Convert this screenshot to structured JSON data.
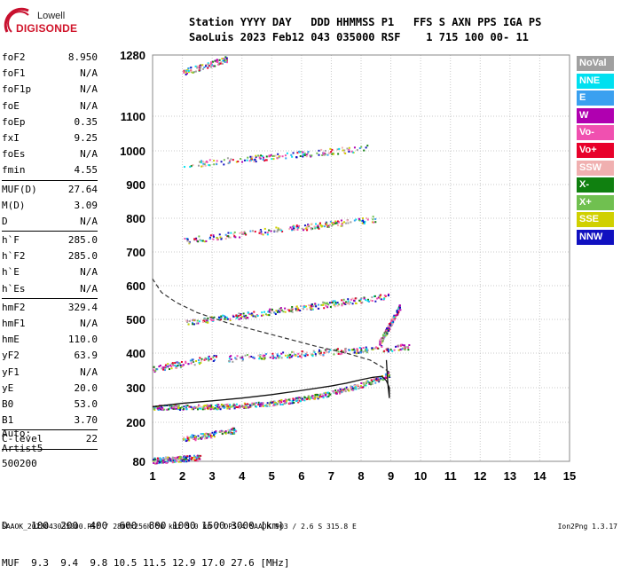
{
  "logo": {
    "line1": "Lowell",
    "line2": "DIGISONDE"
  },
  "header": {
    "line1": "Station YYYY DAY   DDD HHMMSS P1   FFS S AXN PPS IGA PS",
    "line2": "SaoLuis 2023 Feb12 043 035000 RSF    1 715 100 00- 11"
  },
  "params": [
    {
      "name": "foF2",
      "value": "8.950"
    },
    {
      "name": "foF1",
      "value": "N/A"
    },
    {
      "name": "foF1p",
      "value": "N/A"
    },
    {
      "name": "foE",
      "value": "N/A"
    },
    {
      "name": "foEp",
      "value": "0.35"
    },
    {
      "name": "fxI",
      "value": "9.25"
    },
    {
      "name": "foEs",
      "value": "N/A"
    },
    {
      "name": "fmin",
      "value": "4.55"
    },
    {
      "name": "MUF(D)",
      "value": "27.64",
      "sep": true
    },
    {
      "name": "M(D)",
      "value": "3.09"
    },
    {
      "name": "D",
      "value": "N/A"
    },
    {
      "name": "h`F",
      "value": "285.0",
      "sep": true
    },
    {
      "name": "h`F2",
      "value": "285.0"
    },
    {
      "name": "h`E",
      "value": "N/A"
    },
    {
      "name": "h`Es",
      "value": "N/A"
    },
    {
      "name": "hmF2",
      "value": "329.4",
      "sep": true
    },
    {
      "name": "hmF1",
      "value": "N/A"
    },
    {
      "name": "hmE",
      "value": "110.0"
    },
    {
      "name": "yF2",
      "value": "63.9"
    },
    {
      "name": "yF1",
      "value": "N/A"
    },
    {
      "name": "yE",
      "value": "20.0"
    },
    {
      "name": "B0",
      "value": "53.0"
    },
    {
      "name": "B1",
      "value": "3.70"
    },
    {
      "name": "C-level",
      "value": "22",
      "sep": true
    }
  ],
  "artist": {
    "label": "Auto:",
    "name": "Artist5",
    "version": "500200"
  },
  "legend": [
    {
      "label": "NoVal",
      "color": "#a0a0a0"
    },
    {
      "label": "NNE",
      "color": "#00e0f0"
    },
    {
      "label": "E",
      "color": "#3aa0f0"
    },
    {
      "label": "W",
      "color": "#b000b0"
    },
    {
      "label": "Vo-",
      "color": "#f050b0"
    },
    {
      "label": "Vo+",
      "color": "#e8002a"
    },
    {
      "label": "SSW",
      "color": "#f0b0b0"
    },
    {
      "label": "X-",
      "color": "#108010"
    },
    {
      "label": "X+",
      "color": "#70c050"
    },
    {
      "label": "SSE",
      "color": "#d0d000"
    },
    {
      "label": "NNW",
      "color": "#1010c0"
    }
  ],
  "chart_data": {
    "type": "scatter",
    "x_ticks": [
      1,
      2,
      3,
      4,
      5,
      6,
      7,
      8,
      9,
      10,
      11,
      12,
      13,
      14,
      15
    ],
    "y_ticks": [
      80,
      200,
      300,
      400,
      500,
      600,
      700,
      800,
      900,
      1000,
      1100,
      1280
    ],
    "xlim": [
      1,
      15
    ],
    "grid": true,
    "profile_curve": {
      "x": [
        1.0,
        2.0,
        3.0,
        4.0,
        5.0,
        6.0,
        7.0,
        7.5,
        8.0,
        8.4,
        8.7,
        8.85,
        8.95,
        8.95,
        8.9,
        8.7,
        8.3,
        7.5,
        6.5,
        5.0,
        3.5,
        2.5,
        1.8,
        1.3,
        1.0
      ],
      "y": [
        245,
        255,
        262,
        270,
        280,
        292,
        305,
        313,
        323,
        330,
        333,
        320,
        300,
        270,
        310,
        360,
        385,
        405,
        425,
        455,
        490,
        520,
        550,
        580,
        620
      ]
    },
    "solid_curve": {
      "x": [
        1.0,
        2.0,
        3.0,
        4.0,
        5.0,
        6.0,
        7.0,
        7.5,
        8.0,
        8.4,
        8.7,
        8.85,
        8.95,
        8.95,
        8.9,
        8.85
      ],
      "y": [
        245,
        255,
        262,
        270,
        280,
        292,
        305,
        313,
        323,
        330,
        333,
        320,
        300,
        270,
        310,
        380
      ]
    },
    "dashed_curve": {
      "x": [
        8.95,
        8.7,
        8.3,
        7.5,
        6.5,
        5.0,
        3.5,
        2.5,
        1.8,
        1.3,
        1.0
      ],
      "y": [
        345,
        360,
        380,
        400,
        420,
        455,
        490,
        520,
        550,
        580,
        620
      ]
    },
    "traces": [
      {
        "x0": 1.0,
        "x1": 2.6,
        "y0": 84,
        "y1": 93,
        "n": 180
      },
      {
        "x0": 2.0,
        "x1": 3.8,
        "y0": 150,
        "y1": 178,
        "n": 120
      },
      {
        "x0": 1.0,
        "x1": 8.95,
        "y0": 245,
        "y1": 340,
        "n": 520,
        "curve": true
      },
      {
        "x0": 2.0,
        "x1": 8.9,
        "y0": 490,
        "y1": 570,
        "n": 260
      },
      {
        "x0": 2.0,
        "x1": 8.5,
        "y0": 735,
        "y1": 800,
        "n": 200
      },
      {
        "x0": 2.0,
        "x1": 8.2,
        "y0": 960,
        "y1": 1010,
        "n": 160
      },
      {
        "x0": 2.0,
        "x1": 3.5,
        "y0": 1230,
        "y1": 1270,
        "n": 90
      },
      {
        "x0": 1.0,
        "x1": 3.2,
        "y0": 355,
        "y1": 390,
        "n": 90
      },
      {
        "x0": 3.5,
        "x1": 9.6,
        "y0": 385,
        "y1": 420,
        "n": 220
      },
      {
        "x0": 8.6,
        "x1": 9.3,
        "y0": 430,
        "y1": 540,
        "n": 160
      }
    ],
    "distance_table": {
      "D_label": "D",
      "D_values": [
        "100",
        "200",
        "400",
        "600",
        "800",
        "1000",
        "1500",
        "3000"
      ],
      "D_unit": "[km]",
      "MUF_label": "MUF",
      "MUF_values": [
        "9.3",
        "9.4",
        "9.8",
        "10.5",
        "11.5",
        "12.9",
        "17.0",
        "27.6"
      ],
      "MUF_unit": "[MHz]"
    }
  },
  "footer": "SAAOK_2023043035000.RSF / 280fx256h 50 kHz 5.0 km / DPS-4 SAAOK 903 / 2.6 S 315.8 E",
  "version": "Ion2Png 1.3.17"
}
